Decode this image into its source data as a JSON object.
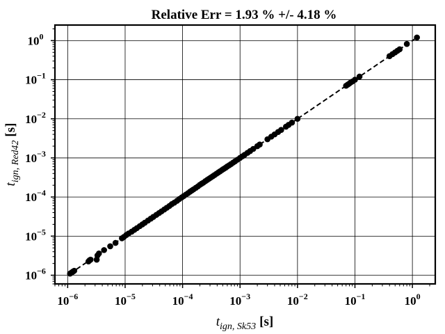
{
  "chart_data": {
    "type": "scatter",
    "title": "Relative Err = 1.93 % +/- 4.18 %",
    "xlabel": {
      "main": "t",
      "sub": "ign, Sk53",
      "unit": "[s]"
    },
    "ylabel": {
      "main": "t",
      "sub": "ign, Red42",
      "unit": "[s]"
    },
    "xscale": "log",
    "yscale": "log",
    "xlim": [
      6e-07,
      2.5
    ],
    "ylim": [
      6e-07,
      2.5
    ],
    "grid": true,
    "x_ticks": [
      {
        "value": 1e-06,
        "base": "10",
        "exp": "−6"
      },
      {
        "value": 1e-05,
        "base": "10",
        "exp": "−5"
      },
      {
        "value": 0.0001,
        "base": "10",
        "exp": "−4"
      },
      {
        "value": 0.001,
        "base": "10",
        "exp": "−3"
      },
      {
        "value": 0.01,
        "base": "10",
        "exp": "−2"
      },
      {
        "value": 0.1,
        "base": "10",
        "exp": "−1"
      },
      {
        "value": 1,
        "base": "10",
        "exp": "0"
      }
    ],
    "y_ticks": [
      {
        "value": 1e-06,
        "base": "10",
        "exp": "−6"
      },
      {
        "value": 1e-05,
        "base": "10",
        "exp": "−5"
      },
      {
        "value": 0.0001,
        "base": "10",
        "exp": "−4"
      },
      {
        "value": 0.001,
        "base": "10",
        "exp": "−3"
      },
      {
        "value": 0.01,
        "base": "10",
        "exp": "−2"
      },
      {
        "value": 0.1,
        "base": "10",
        "exp": "−1"
      },
      {
        "value": 1,
        "base": "10",
        "exp": "0"
      }
    ],
    "reference_line": {
      "style": "dashed",
      "color": "#000000",
      "x": [
        1.1e-06,
        1.2
      ],
      "y": [
        1.1e-06,
        1.2
      ]
    },
    "series": [
      {
        "color": "#000000",
        "marker": "circle",
        "points": [
          [
            1.1e-06,
            1.1e-06
          ],
          [
            1.15e-06,
            1.15e-06
          ],
          [
            1.2e-06,
            1.2e-06
          ],
          [
            1.25e-06,
            1.25e-06
          ],
          [
            1.3e-06,
            1.3e-06
          ],
          [
            2.3e-06,
            2.25e-06
          ],
          [
            2.4e-06,
            2.4e-06
          ],
          [
            2.5e-06,
            2.5e-06
          ],
          [
            3.2e-06,
            2.5e-06
          ],
          [
            3.3e-06,
            3.2e-06
          ],
          [
            3.5e-06,
            3.6e-06
          ],
          [
            4.3e-06,
            4.4e-06
          ],
          [
            5.5e-06,
            5.5e-06
          ],
          [
            6.8e-06,
            6.7e-06
          ],
          [
            8.8e-06,
            8.8e-06
          ],
          [
            9.5e-06,
            9.5e-06
          ],
          [
            1.05e-05,
            1.07e-05
          ],
          [
            1.15e-05,
            1.17e-05
          ],
          [
            1.3e-05,
            1.3e-05
          ],
          [
            1.45e-05,
            1.45e-05
          ],
          [
            1.6e-05,
            1.6e-05
          ],
          [
            1.8e-05,
            1.8e-05
          ],
          [
            2e-05,
            2e-05
          ],
          [
            2.2e-05,
            2.2e-05
          ],
          [
            2.5e-05,
            2.5e-05
          ],
          [
            2.8e-05,
            2.8e-05
          ],
          [
            3.1e-05,
            3.1e-05
          ],
          [
            3.5e-05,
            3.5e-05
          ],
          [
            3.9e-05,
            3.9e-05
          ],
          [
            4.3e-05,
            4.3e-05
          ],
          [
            4.8e-05,
            4.8e-05
          ],
          [
            5.3e-05,
            5.3e-05
          ],
          [
            5.9e-05,
            5.9e-05
          ],
          [
            6.5e-05,
            6.6e-05
          ],
          [
            7.2e-05,
            7.2e-05
          ],
          [
            8e-05,
            8e-05
          ],
          [
            8.8e-05,
            8.9e-05
          ],
          [
            9.7e-05,
            9.8e-05
          ],
          [
            0.000105,
            0.000106
          ],
          [
            0.000115,
            0.000116
          ],
          [
            0.000125,
            0.000126
          ],
          [
            0.000135,
            0.000137
          ],
          [
            0.000145,
            0.000147
          ],
          [
            0.000155,
            0.000157
          ],
          [
            0.00017,
            0.000172
          ],
          [
            0.000185,
            0.000187
          ],
          [
            0.0002,
            0.000205
          ],
          [
            0.000215,
            0.00022
          ],
          [
            0.00023,
            0.000233
          ],
          [
            0.00025,
            0.000255
          ],
          [
            0.00027,
            0.000275
          ],
          [
            0.00029,
            0.000295
          ],
          [
            0.00031,
            0.000315
          ],
          [
            0.000335,
            0.00034
          ],
          [
            0.00036,
            0.000365
          ],
          [
            0.00039,
            0.000395
          ],
          [
            0.00042,
            0.000425
          ],
          [
            0.00045,
            0.000455
          ],
          [
            0.000485,
            0.00049
          ],
          [
            0.00052,
            0.000525
          ],
          [
            0.00056,
            0.00056
          ],
          [
            0.0006,
            0.000605
          ],
          [
            0.00065,
            0.00065
          ],
          [
            0.0007,
            0.0007
          ],
          [
            0.00076,
            0.00076
          ],
          [
            0.00082,
            0.00082
          ],
          [
            0.0009,
            0.0009
          ],
          [
            0.001,
            0.001
          ],
          [
            0.0011,
            0.0011
          ],
          [
            0.0012,
            0.0012
          ],
          [
            0.00135,
            0.00135
          ],
          [
            0.0015,
            0.0015
          ],
          [
            0.0017,
            0.0017
          ],
          [
            0.002,
            0.002
          ],
          [
            0.0022,
            0.0022
          ],
          [
            0.003,
            0.003
          ],
          [
            0.0035,
            0.0035
          ],
          [
            0.004,
            0.004
          ],
          [
            0.0046,
            0.0046
          ],
          [
            0.0052,
            0.0052
          ],
          [
            0.0063,
            0.0063
          ],
          [
            0.007,
            0.007
          ],
          [
            0.008,
            0.008
          ],
          [
            0.01,
            0.01
          ],
          [
            0.07,
            0.07
          ],
          [
            0.075,
            0.075
          ],
          [
            0.08,
            0.08
          ],
          [
            0.085,
            0.086
          ],
          [
            0.09,
            0.09
          ],
          [
            0.1,
            0.1
          ],
          [
            0.12,
            0.12
          ],
          [
            0.4,
            0.4
          ],
          [
            0.45,
            0.45
          ],
          [
            0.5,
            0.5
          ],
          [
            0.55,
            0.55
          ],
          [
            0.6,
            0.6
          ],
          [
            0.8,
            0.82
          ],
          [
            1.2,
            1.2
          ]
        ]
      }
    ]
  }
}
